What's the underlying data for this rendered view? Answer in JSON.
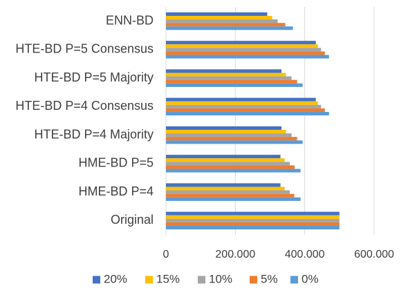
{
  "chart_data": {
    "type": "bar",
    "orientation": "horizontal",
    "categories": [
      "Original",
      "HME-BD P=4",
      "HME-BD P=5",
      "HTE-BD P=4 Majority",
      "HTE-BD P=4 Consensus",
      "HTE-BD P=5 Majority",
      "HTE-BD P=5 Consensus",
      "ENN-BD"
    ],
    "series": [
      {
        "name": "20%",
        "color": "#4472C4",
        "values": [
          500,
          330,
          330,
          333,
          432,
          333,
          432,
          292
        ]
      },
      {
        "name": "15%",
        "color": "#FFC000",
        "values": [
          500,
          342,
          342,
          346,
          438,
          346,
          438,
          306
        ]
      },
      {
        "name": "10%",
        "color": "#A5A5A5",
        "values": [
          500,
          357,
          357,
          362,
          447,
          362,
          447,
          322
        ]
      },
      {
        "name": "5%",
        "color": "#ED7D31",
        "values": [
          500,
          370,
          371,
          378,
          458,
          378,
          458,
          344
        ]
      },
      {
        "name": "0%",
        "color": "#5B9BD5",
        "values": [
          500,
          388,
          388,
          394,
          470,
          394,
          470,
          366
        ]
      }
    ],
    "xlim": [
      0,
      600
    ],
    "xticks": [
      0,
      200,
      400,
      600
    ],
    "xtick_labels": [
      "0",
      "200.000",
      "400.000",
      "600.000"
    ],
    "grid": "vertical",
    "legend_position": "bottom",
    "legend_order": [
      "20%",
      "15%",
      "10%",
      "5%",
      "0%"
    ]
  }
}
